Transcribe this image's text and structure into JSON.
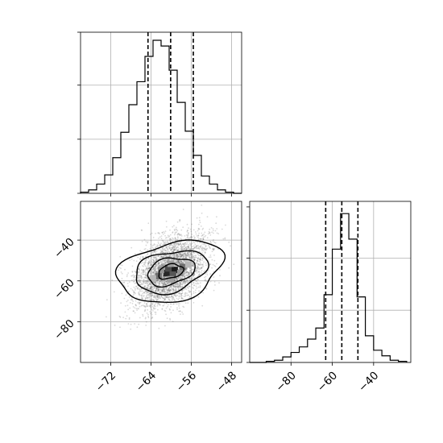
{
  "chart_data": {
    "type": "corner",
    "colors": {
      "ink": "#000000",
      "grid": "#b0b0b0",
      "scatter": "#555555"
    },
    "hist_x": {
      "type": "histogram",
      "xlim": [
        -78,
        -46
      ],
      "bin_edges": [
        -78,
        -76.4,
        -74.8,
        -73.2,
        -71.6,
        -70,
        -68.4,
        -66.8,
        -65.2,
        -63.6,
        -62,
        -60.4,
        -58.8,
        -57.2,
        -55.6,
        -54,
        -52.4,
        -50.8,
        -49.2,
        -47.6,
        -46
      ],
      "counts": [
        1,
        3,
        8,
        16,
        31,
        53,
        77,
        97,
        119,
        133,
        128,
        107,
        79,
        54,
        33,
        15,
        8,
        3,
        1,
        0
      ],
      "quantiles": [
        -64.6,
        -60.1,
        -55.6
      ],
      "ymax": 140,
      "grid": true
    },
    "hist_y": {
      "type": "histogram",
      "xlim": [
        -100,
        -22
      ],
      "xticks": [
        -80,
        -60,
        -40
      ],
      "xtick_labels": [
        "−80",
        "−60",
        "−40"
      ],
      "bin_edges": [
        -100,
        -96,
        -92,
        -88,
        -84,
        -80,
        -76,
        -72,
        -68,
        -64,
        -60,
        -56,
        -52,
        -48,
        -44,
        -40,
        -36,
        -32,
        -28,
        -24
      ],
      "counts": [
        0,
        0,
        1,
        2,
        5,
        9,
        14,
        21,
        31,
        61,
        102,
        134,
        111,
        59,
        24,
        11,
        6,
        2,
        1
      ],
      "quantiles": [
        -63.2,
        -55.4,
        -47.6
      ],
      "ymax": 145,
      "grid": true
    },
    "joint": {
      "type": "scatter-density",
      "xlim": [
        -78,
        -46
      ],
      "ylim": [
        -100,
        -21
      ],
      "xticks": [
        -72,
        -64,
        -56,
        -48
      ],
      "xtick_labels": [
        "−72",
        "−64",
        "−56",
        "−48"
      ],
      "yticks": [
        -40,
        -60,
        -80
      ],
      "ytick_labels": [
        "−40",
        "−60",
        "−80"
      ],
      "center": [
        -60.1,
        -55.4
      ],
      "sigma": [
        3.7,
        9.2
      ],
      "correlation": 0.45,
      "contour_levels": 4,
      "grid": true
    }
  }
}
